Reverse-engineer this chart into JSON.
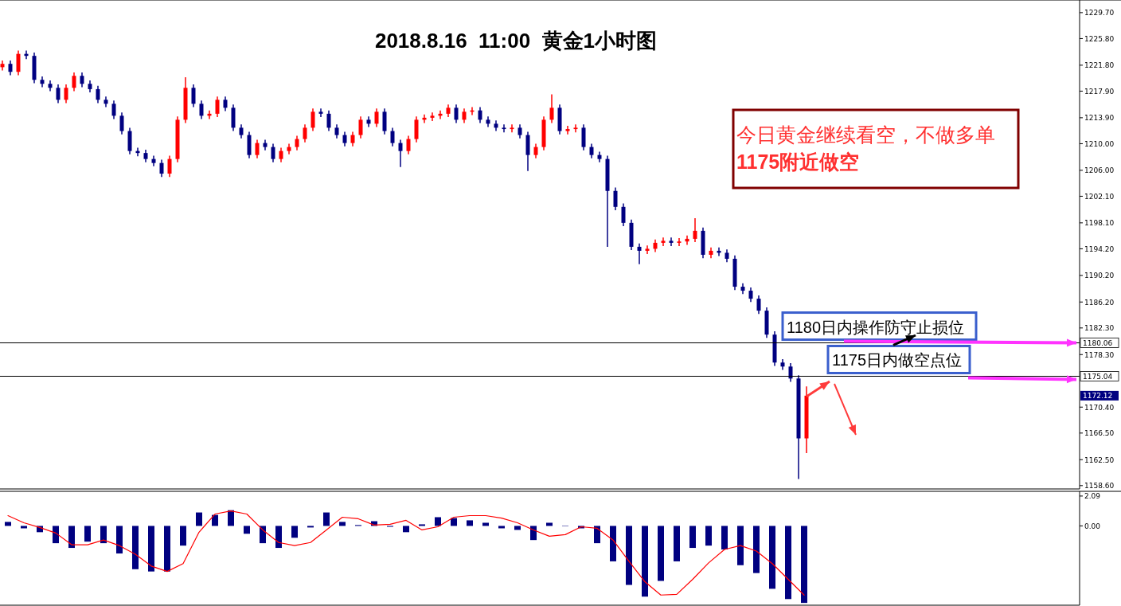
{
  "chart_data": [
    {
      "type": "candlestick",
      "title": "2018.8.16  11:00  黄金1小时图",
      "categories": [
        null,
        null,
        null,
        null,
        null,
        null,
        null,
        null,
        null,
        null,
        null,
        null,
        null,
        null,
        null,
        null,
        null,
        null,
        null,
        null,
        null,
        null,
        null,
        null,
        null,
        null,
        null,
        null,
        null,
        null,
        null,
        null,
        null,
        null,
        null,
        null,
        null,
        null,
        null,
        null,
        null,
        null,
        null,
        null,
        null,
        null,
        null,
        null,
        null,
        null,
        null,
        null,
        null,
        null,
        null,
        null,
        null,
        null,
        null,
        null,
        null,
        null,
        null,
        null,
        null,
        null,
        null,
        null,
        null,
        null,
        null,
        null,
        null,
        null,
        null,
        null,
        null,
        null,
        null,
        null,
        null,
        null,
        null,
        null,
        null,
        null,
        null,
        null,
        null,
        null,
        null,
        null,
        null,
        null,
        null,
        null,
        null,
        null,
        null,
        null,
        null,
        null
      ],
      "ohlc": [
        [
          1221.5,
          1222.5,
          1221.0,
          1222.0
        ],
        [
          1222.0,
          1222.5,
          1220.3,
          1220.8
        ],
        [
          1220.8,
          1224.0,
          1220.3,
          1223.5
        ],
        [
          1223.5,
          1224.0,
          1222.7,
          1223.2
        ],
        [
          1223.2,
          1223.7,
          1219.1,
          1219.6
        ],
        [
          1219.6,
          1220.1,
          1218.5,
          1219.0
        ],
        [
          1219.0,
          1219.5,
          1217.9,
          1218.4
        ],
        [
          1218.4,
          1218.9,
          1216.1,
          1216.6
        ],
        [
          1216.6,
          1218.9,
          1216.1,
          1218.4
        ],
        [
          1218.4,
          1220.7,
          1217.9,
          1220.2
        ],
        [
          1220.2,
          1220.7,
          1218.5,
          1219.0
        ],
        [
          1219.0,
          1219.5,
          1217.7,
          1218.2
        ],
        [
          1218.2,
          1218.7,
          1216.1,
          1216.6
        ],
        [
          1216.6,
          1217.1,
          1215.5,
          1216.0
        ],
        [
          1216.0,
          1216.5,
          1213.7,
          1214.2
        ],
        [
          1214.2,
          1214.7,
          1211.4,
          1211.9
        ],
        [
          1211.9,
          1212.4,
          1208.4,
          1208.9
        ],
        [
          1208.9,
          1209.4,
          1208.1,
          1208.6
        ],
        [
          1208.6,
          1209.1,
          1207.2,
          1207.7
        ],
        [
          1207.7,
          1208.2,
          1206.6,
          1207.1
        ],
        [
          1207.1,
          1207.6,
          1205.0,
          1205.5
        ],
        [
          1205.5,
          1208.2,
          1205.0,
          1207.7
        ],
        [
          1207.7,
          1214.1,
          1207.2,
          1213.6
        ],
        [
          1213.6,
          1220.0,
          1213.1,
          1218.4
        ],
        [
          1218.4,
          1218.9,
          1215.5,
          1216.0
        ],
        [
          1216.0,
          1216.5,
          1213.7,
          1214.2
        ],
        [
          1214.2,
          1215.0,
          1213.7,
          1214.5
        ],
        [
          1214.5,
          1217.1,
          1214.0,
          1216.6
        ],
        [
          1216.6,
          1217.1,
          1214.9,
          1215.4
        ],
        [
          1215.4,
          1215.9,
          1211.9,
          1212.4
        ],
        [
          1212.4,
          1212.9,
          1210.8,
          1211.3
        ],
        [
          1211.3,
          1211.8,
          1207.8,
          1208.3
        ],
        [
          1208.3,
          1210.6,
          1207.8,
          1210.1
        ],
        [
          1210.1,
          1210.6,
          1209.0,
          1209.5
        ],
        [
          1209.5,
          1210.0,
          1207.2,
          1207.7
        ],
        [
          1207.7,
          1209.4,
          1207.2,
          1208.9
        ],
        [
          1208.9,
          1210.0,
          1208.4,
          1209.5
        ],
        [
          1209.5,
          1211.2,
          1209.0,
          1210.7
        ],
        [
          1210.7,
          1212.9,
          1210.2,
          1212.4
        ],
        [
          1212.4,
          1215.3,
          1211.9,
          1214.8
        ],
        [
          1214.8,
          1215.3,
          1214.0,
          1214.5
        ],
        [
          1214.5,
          1215.0,
          1211.9,
          1212.4
        ],
        [
          1212.4,
          1212.9,
          1210.8,
          1211.3
        ],
        [
          1211.3,
          1211.8,
          1209.6,
          1210.1
        ],
        [
          1210.1,
          1211.8,
          1209.6,
          1211.3
        ],
        [
          1211.3,
          1214.1,
          1210.8,
          1213.6
        ],
        [
          1213.6,
          1214.1,
          1212.5,
          1213.0
        ],
        [
          1213.0,
          1215.3,
          1212.5,
          1214.8
        ],
        [
          1214.8,
          1215.3,
          1211.4,
          1211.9
        ],
        [
          1211.9,
          1212.4,
          1209.6,
          1210.1
        ],
        [
          1210.1,
          1210.6,
          1206.5,
          1208.9
        ],
        [
          1208.9,
          1211.2,
          1208.4,
          1210.7
        ],
        [
          1210.7,
          1214.1,
          1210.2,
          1213.6
        ],
        [
          1213.6,
          1214.4,
          1213.1,
          1213.9
        ],
        [
          1213.9,
          1214.7,
          1213.4,
          1214.2
        ],
        [
          1214.2,
          1215.0,
          1213.7,
          1214.5
        ],
        [
          1214.5,
          1215.9,
          1214.0,
          1215.4
        ],
        [
          1215.4,
          1215.9,
          1213.1,
          1213.6
        ],
        [
          1213.6,
          1215.3,
          1213.1,
          1214.8
        ],
        [
          1214.8,
          1215.5,
          1214.3,
          1215.0
        ],
        [
          1215.0,
          1215.5,
          1213.1,
          1213.6
        ],
        [
          1213.6,
          1214.1,
          1212.5,
          1213.0
        ],
        [
          1213.0,
          1213.5,
          1211.9,
          1212.4
        ],
        [
          1212.4,
          1212.9,
          1211.7,
          1212.2
        ],
        [
          1212.2,
          1212.9,
          1211.7,
          1212.4
        ],
        [
          1212.4,
          1212.9,
          1210.8,
          1211.3
        ],
        [
          1211.3,
          1211.8,
          1205.9,
          1208.3
        ],
        [
          1208.3,
          1210.0,
          1207.8,
          1209.5
        ],
        [
          1209.5,
          1214.1,
          1209.0,
          1213.6
        ],
        [
          1213.6,
          1217.4,
          1213.1,
          1215.4
        ],
        [
          1215.4,
          1215.9,
          1211.4,
          1211.9
        ],
        [
          1211.9,
          1212.7,
          1211.4,
          1212.2
        ],
        [
          1212.2,
          1212.9,
          1211.7,
          1212.4
        ],
        [
          1212.4,
          1212.9,
          1209.0,
          1209.5
        ],
        [
          1209.5,
          1210.0,
          1207.8,
          1208.3
        ],
        [
          1208.3,
          1208.8,
          1207.2,
          1207.7
        ],
        [
          1207.7,
          1208.2,
          1194.5,
          1202.9
        ],
        [
          1202.9,
          1203.4,
          1200.0,
          1200.5
        ],
        [
          1200.5,
          1201.0,
          1197.6,
          1198.1
        ],
        [
          1198.1,
          1198.6,
          1194.0,
          1194.5
        ],
        [
          1194.5,
          1195.0,
          1191.9,
          1193.9
        ],
        [
          1193.9,
          1194.7,
          1193.4,
          1194.2
        ],
        [
          1194.2,
          1195.6,
          1193.7,
          1195.1
        ],
        [
          1195.1,
          1195.9,
          1194.6,
          1195.4
        ],
        [
          1195.4,
          1195.9,
          1194.6,
          1195.1
        ],
        [
          1195.1,
          1195.8,
          1194.6,
          1195.3
        ],
        [
          1195.3,
          1196.2,
          1194.8,
          1195.7
        ],
        [
          1195.7,
          1198.8,
          1195.2,
          1196.9
        ],
        [
          1196.9,
          1197.4,
          1192.8,
          1193.3
        ],
        [
          1193.3,
          1194.4,
          1192.8,
          1193.9
        ],
        [
          1193.9,
          1194.4,
          1193.1,
          1193.6
        ],
        [
          1193.6,
          1194.1,
          1192.2,
          1192.7
        ],
        [
          1192.7,
          1193.2,
          1188.0,
          1188.5
        ],
        [
          1188.5,
          1189.0,
          1187.4,
          1187.9
        ],
        [
          1187.9,
          1188.4,
          1186.2,
          1186.7
        ],
        [
          1186.7,
          1187.2,
          1184.4,
          1184.9
        ],
        [
          1184.9,
          1185.4,
          1180.8,
          1181.3
        ],
        [
          1181.3,
          1181.8,
          1176.6,
          1177.1
        ],
        [
          1177.1,
          1177.6,
          1176.0,
          1176.5
        ],
        [
          1176.5,
          1177.0,
          1174.2,
          1174.7
        ],
        [
          1174.7,
          1175.2,
          1159.6,
          1165.7
        ],
        [
          1165.7,
          1173.5,
          1163.5,
          1172.12
        ]
      ],
      "colors": [
        "#ff0000",
        "#000080",
        "#ff0000",
        "#000080",
        "#000080",
        "#000080",
        "#000080",
        "#000080",
        "#ff0000",
        "#ff0000",
        "#000080",
        "#000080",
        "#000080",
        "#000080",
        "#000080",
        "#000080",
        "#000080",
        "#000080",
        "#000080",
        "#000080",
        "#000080",
        "#ff0000",
        "#ff0000",
        "#ff0000",
        "#000080",
        "#000080",
        "#ff0000",
        "#ff0000",
        "#000080",
        "#000080",
        "#000080",
        "#000080",
        "#ff0000",
        "#000080",
        "#000080",
        "#ff0000",
        "#ff0000",
        "#ff0000",
        "#ff0000",
        "#ff0000",
        "#000080",
        "#000080",
        "#000080",
        "#000080",
        "#ff0000",
        "#ff0000",
        "#000080",
        "#ff0000",
        "#000080",
        "#000080",
        "#000080",
        "#ff0000",
        "#ff0000",
        "#ff0000",
        "#ff0000",
        "#ff0000",
        "#ff0000",
        "#000080",
        "#ff0000",
        "#ff0000",
        "#000080",
        "#000080",
        "#000080",
        "#000080",
        "#ff0000",
        "#000080",
        "#000080",
        "#ff0000",
        "#ff0000",
        "#ff0000",
        "#000080",
        "#ff0000",
        "#ff0000",
        "#000080",
        "#000080",
        "#000080",
        "#000080",
        "#000080",
        "#000080",
        "#000080",
        "#000080",
        "#ff0000",
        "#ff0000",
        "#ff0000",
        "#000080",
        "#ff0000",
        "#ff0000",
        "#ff0000",
        "#000080",
        "#ff0000",
        "#000080",
        "#000080",
        "#000080",
        "#000080",
        "#000080",
        "#000080",
        "#000080",
        "#000080",
        "#000080",
        "#000080",
        "#000080",
        "#ff0000"
      ],
      "ylim": [
        1158.1,
        1231.6
      ],
      "yticks": [
        "1229.70",
        "1225.80",
        "1221.80",
        "1217.90",
        "1213.90",
        "1210.00",
        "1206.00",
        "1202.10",
        "1198.10",
        "1194.20",
        "1190.20",
        "1186.20",
        "1182.30",
        "1178.30",
        "1170.40",
        "1166.50",
        "1162.50",
        "1158.60"
      ],
      "ref_lines": [
        {
          "axis": "y",
          "value": 1180.06,
          "label": "1180.06",
          "color": "#000000"
        },
        {
          "axis": "y",
          "value": 1175.04,
          "label": "1175.04",
          "color": "#000000"
        }
      ],
      "annotations": [
        "今日黄金继续看空，不做多单",
        "1175附近做空",
        {
          "text": "1180日内操作防守止损位",
          "y": 1180.06
        },
        {
          "text": "1175日内做空点位",
          "y": 1175.04
        },
        "1172.12"
      ]
    },
    {
      "type": "bar",
      "categories": [
        null,
        null,
        null,
        null,
        null,
        null,
        null,
        null,
        null,
        null,
        null,
        null,
        null,
        null,
        null,
        null,
        null,
        null,
        null,
        null,
        null,
        null,
        null,
        null,
        null,
        null,
        null,
        null,
        null,
        null,
        null,
        null,
        null,
        null,
        null,
        null,
        null,
        null,
        null,
        null,
        null,
        null,
        null,
        null,
        null,
        null,
        null,
        null,
        null,
        null,
        null
      ],
      "series": [
        {
          "type": "bar",
          "color": "#000080",
          "values": [
            0.28,
            -0.17,
            -0.44,
            -1.21,
            -1.54,
            -1.1,
            -1.21,
            -1.93,
            -3.03,
            -3.19,
            -3.19,
            -1.38,
            0.94,
            0.77,
            1.1,
            -0.55,
            -1.21,
            -1.54,
            -0.83,
            -0.11,
            0.94,
            0.28,
            0.06,
            0.33,
            -0.06,
            -0.44,
            0.11,
            0.61,
            0.55,
            0.39,
            0.22,
            -0.17,
            -0.28,
            -0.99,
            0.22,
            0,
            -0.17,
            -1.21,
            -2.48,
            -4.13,
            -4.95,
            -3.85,
            -2.48,
            -1.54,
            -1.38,
            -1.65,
            -2.75,
            -3.3,
            -4.4,
            -5.12,
            -5.39
          ]
        },
        {
          "type": "line",
          "color": "#ff0000",
          "values": [
            0.72,
            0.22,
            -0.11,
            -0.5,
            -1.32,
            -1.32,
            -0.99,
            -1.38,
            -1.98,
            -2.81,
            -3.19,
            -2.64,
            -0.44,
            0.83,
            1.05,
            0.83,
            -0.28,
            -1.16,
            -1.38,
            -1.16,
            -0.28,
            0.61,
            0.5,
            0.06,
            0.11,
            0.39,
            -0.28,
            -0.06,
            0.61,
            0.72,
            0.72,
            0.55,
            0.22,
            -0.28,
            -0.72,
            -0.61,
            -0.06,
            -0.17,
            -0.99,
            -2.48,
            -3.91,
            -4.84,
            -4.79,
            -3.74,
            -2.59,
            -1.65,
            -1.38,
            -1.76,
            -2.64,
            -3.74,
            -4.84
          ]
        }
      ],
      "ylim": [
        -5.55,
        2.42
      ],
      "yticks": [
        2.09,
        {
          "value": 0,
          "label": "0.00"
        }
      ]
    }
  ]
}
